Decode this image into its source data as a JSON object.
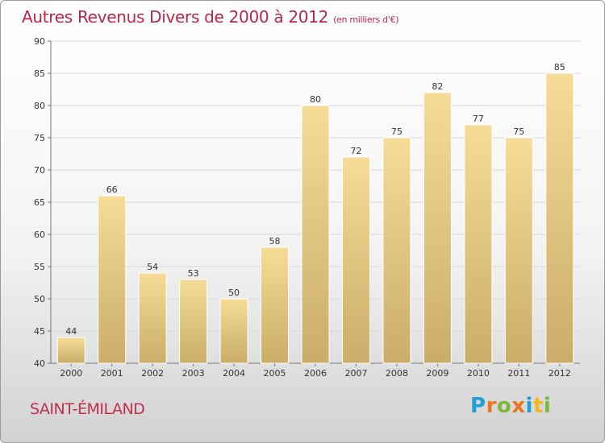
{
  "header": {
    "title": "Autres Revenus Divers de 2000 à 2012",
    "subtitle": "(en milliers d'€)"
  },
  "footer": {
    "place": "SAINT-ÉMILAND",
    "logo_text": "Proxiti",
    "logo_colors": [
      "#1f9fd8",
      "#e8761c",
      "#7cb63c",
      "#e8761c",
      "#1f9fd8",
      "#f2b81c",
      "#7cb63c"
    ]
  },
  "chart_data": {
    "type": "bar",
    "title": "Autres Revenus Divers de 2000 à 2012",
    "subtitle": "(en milliers d'€)",
    "categories": [
      "2000",
      "2001",
      "2002",
      "2003",
      "2004",
      "2005",
      "2006",
      "2007",
      "2008",
      "2009",
      "2010",
      "2011",
      "2012"
    ],
    "values": [
      44,
      66,
      54,
      53,
      50,
      58,
      80,
      72,
      75,
      82,
      77,
      75,
      85
    ],
    "ylim": [
      40,
      90
    ],
    "yticks": [
      40,
      45,
      50,
      55,
      60,
      65,
      70,
      75,
      80,
      85,
      90
    ],
    "grid": true,
    "bar_colors": [
      "#f6dc96",
      "#c9ad68"
    ]
  }
}
